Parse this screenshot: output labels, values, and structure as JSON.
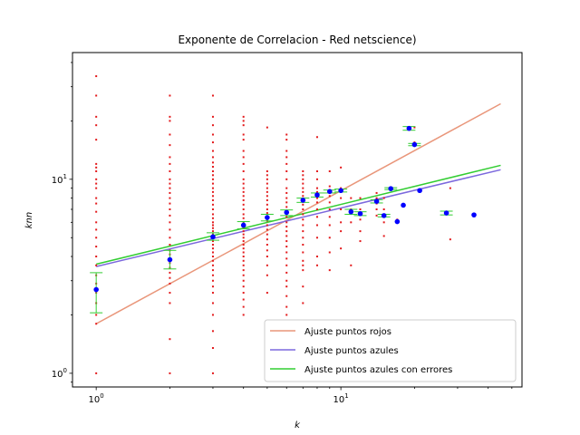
{
  "chart_data": {
    "type": "scatter",
    "title": "Exponente de Correlacion - Red netscience)",
    "xlabel": "k",
    "ylabel": "knn",
    "xscale": "log",
    "yscale": "log",
    "xlim": [
      0.8,
      55
    ],
    "ylim": [
      0.85,
      45
    ],
    "x_ticks": [
      {
        "value": 1,
        "base": "10",
        "exp": "0"
      },
      {
        "value": 10,
        "base": "10",
        "exp": "1"
      }
    ],
    "y_ticks": [
      {
        "value": 1,
        "base": "10",
        "exp": "0"
      },
      {
        "value": 10,
        "base": "10",
        "exp": "1"
      }
    ],
    "grid": false,
    "legend_position": "lower right",
    "colors": {
      "red_points": "#e31a1c",
      "blue_points": "#0000ff",
      "fit_red": "#e9967a",
      "fit_blue": "#7b68dd",
      "fit_blue_err": "#32cd32",
      "error_bars": "#32cd32"
    },
    "red_points": [
      {
        "x": 1,
        "y": [
          1.0,
          1.8,
          2.0,
          2.3,
          2.6,
          2.9,
          3.2,
          3.6,
          4.0,
          4.5,
          5.0,
          5.5,
          6.0,
          6.8,
          7.5,
          8.0,
          9.0,
          9.5,
          10.0,
          11.0,
          11.5,
          12.0,
          16.0,
          19.0,
          21.0,
          27.0,
          34.0
        ]
      },
      {
        "x": 2,
        "y": [
          1.0,
          1.5,
          2.3,
          2.6,
          2.9,
          3.1,
          3.3,
          3.5,
          3.7,
          3.9,
          4.1,
          4.3,
          4.6,
          5.0,
          5.5,
          6.0,
          6.5,
          7.0,
          7.5,
          8.0,
          8.5,
          9.0,
          9.5,
          10.0,
          11.0,
          12.0,
          13.0,
          15.0,
          17.0,
          20.0,
          21.0,
          27.0
        ]
      },
      {
        "x": 3,
        "y": [
          1.0,
          1.35,
          1.65,
          2.0,
          2.3,
          2.6,
          2.8,
          3.0,
          3.2,
          3.4,
          3.6,
          3.8,
          4.0,
          4.2,
          4.4,
          4.6,
          4.8,
          5.0,
          5.2,
          5.4,
          5.6,
          5.8,
          6.0,
          6.3,
          6.6,
          7.0,
          7.4,
          7.8,
          8.2,
          8.6,
          9.0,
          9.5,
          10.0,
          10.5,
          11.0,
          11.6,
          12.2,
          13.0,
          14.0,
          15.5,
          17.0,
          19.0,
          21.0,
          27.0
        ]
      },
      {
        "x": 4,
        "y": [
          2.0,
          2.2,
          2.4,
          2.6,
          2.8,
          3.0,
          3.2,
          3.4,
          3.6,
          3.8,
          4.0,
          4.2,
          4.4,
          4.6,
          4.8,
          5.0,
          5.2,
          5.4,
          5.6,
          5.8,
          6.0,
          6.3,
          6.6,
          7.0,
          7.4,
          7.8,
          8.2,
          8.6,
          9.0,
          9.5,
          10.0,
          11.0,
          12.0,
          13.0,
          14.0,
          16.0,
          17.0,
          19.0,
          20.0,
          21.0
        ]
      },
      {
        "x": 5,
        "y": [
          2.6,
          3.2,
          3.6,
          4.0,
          4.3,
          4.6,
          4.9,
          5.2,
          5.5,
          5.8,
          6.1,
          6.4,
          6.7,
          7.0,
          7.4,
          7.8,
          8.2,
          8.6,
          9.0,
          9.5,
          10.0,
          10.5,
          11.0,
          18.5
        ]
      },
      {
        "x": 6,
        "y": [
          2.0,
          2.2,
          2.5,
          2.8,
          3.0,
          3.3,
          3.6,
          3.9,
          4.2,
          4.5,
          4.8,
          5.1,
          5.4,
          5.7,
          6.0,
          6.4,
          6.8,
          7.2,
          7.6,
          8.0,
          8.5,
          9.0,
          10.0,
          11.0,
          12.0,
          13.0,
          14.0,
          16.0,
          17.0
        ]
      },
      {
        "x": 7,
        "y": [
          2.3,
          2.8,
          3.4,
          3.6,
          3.8,
          4.2,
          4.6,
          5.0,
          5.4,
          5.8,
          6.2,
          6.6,
          7.0,
          7.4,
          7.8,
          8.2,
          8.6,
          9.0,
          9.5,
          10.0,
          10.5,
          11.0
        ]
      },
      {
        "x": 8,
        "y": [
          3.6,
          4.0,
          5.0,
          5.8,
          6.4,
          7.0,
          7.6,
          8.0,
          8.6,
          9.0,
          10.0,
          11.0,
          16.5
        ]
      },
      {
        "x": 9,
        "y": [
          3.4,
          4.2,
          5.0,
          5.8,
          6.4,
          7.0,
          7.6,
          8.2,
          8.8,
          9.2,
          11.0
        ]
      },
      {
        "x": 10,
        "y": [
          4.4,
          5.4,
          6.0,
          7.0,
          8.0,
          8.6,
          9.0,
          11.5
        ]
      },
      {
        "x": 11,
        "y": [
          3.6,
          6.0,
          7.0,
          8.0
        ]
      },
      {
        "x": 12,
        "y": [
          4.8,
          5.4,
          6.2,
          7.0,
          8.0
        ]
      },
      {
        "x": 14,
        "y": [
          6.5,
          7.0,
          7.5,
          8.0,
          8.5
        ]
      },
      {
        "x": 15,
        "y": [
          5.1,
          6.0,
          7.0,
          8.0
        ]
      },
      {
        "x": 17,
        "y": [
          6.2
        ]
      },
      {
        "x": 19,
        "y": [
          18.0,
          18.5
        ]
      },
      {
        "x": 20,
        "y": [
          15.0,
          15.5,
          18.5
        ]
      },
      {
        "x": 28,
        "y": [
          4.9,
          9.0
        ]
      }
    ],
    "blue_points": [
      {
        "x": 1,
        "y": 2.7,
        "err": [
          2.05,
          3.3
        ]
      },
      {
        "x": 2,
        "y": 3.85,
        "err": [
          3.45,
          4.3
        ]
      },
      {
        "x": 3,
        "y": 5.05,
        "err": [
          4.85,
          5.3
        ]
      },
      {
        "x": 4,
        "y": 5.8,
        "err": [
          5.55,
          6.05
        ]
      },
      {
        "x": 5,
        "y": 6.35,
        "err": [
          6.1,
          6.6
        ]
      },
      {
        "x": 6,
        "y": 6.75,
        "err": [
          6.5,
          6.95
        ]
      },
      {
        "x": 7,
        "y": 7.8,
        "err": [
          7.6,
          8.0
        ]
      },
      {
        "x": 8,
        "y": 8.3,
        "err": [
          8.1,
          8.5
        ]
      },
      {
        "x": 9,
        "y": 8.65,
        "err": [
          8.5,
          8.8
        ]
      },
      {
        "x": 10,
        "y": 8.75,
        "err": [
          8.6,
          8.9
        ]
      },
      {
        "x": 11,
        "y": 6.8,
        "err": [
          6.6,
          7.0
        ]
      },
      {
        "x": 12,
        "y": 6.65,
        "err": [
          6.5,
          6.8
        ]
      },
      {
        "x": 14,
        "y": 7.7,
        "err": [
          7.55,
          7.85
        ]
      },
      {
        "x": 15,
        "y": 6.5,
        "err": [
          6.4,
          6.6
        ]
      },
      {
        "x": 16,
        "y": 8.95,
        "err": [
          8.85,
          9.05
        ]
      },
      {
        "x": 17,
        "y": 6.05,
        "err": null
      },
      {
        "x": 18,
        "y": 7.35,
        "err": null
      },
      {
        "x": 19,
        "y": 18.3,
        "err": [
          17.9,
          18.7
        ]
      },
      {
        "x": 20,
        "y": 15.1,
        "err": [
          14.9,
          15.3
        ]
      },
      {
        "x": 21,
        "y": 8.75,
        "err": null
      },
      {
        "x": 27,
        "y": 6.7,
        "err": [
          6.55,
          6.85
        ]
      },
      {
        "x": 35,
        "y": 6.55,
        "err": null
      }
    ],
    "series": [
      {
        "name": "Ajuste puntos rojos",
        "color": "#e9967a",
        "x": [
          1,
          45
        ],
        "y": [
          1.8,
          24.5
        ]
      },
      {
        "name": "Ajuste puntos azules",
        "color": "#7b68dd",
        "x": [
          1,
          45
        ],
        "y": [
          3.55,
          11.2
        ]
      },
      {
        "name": "Ajuste puntos azules con errores",
        "color": "#32cd32",
        "x": [
          1,
          45
        ],
        "y": [
          3.65,
          11.8
        ]
      }
    ]
  }
}
